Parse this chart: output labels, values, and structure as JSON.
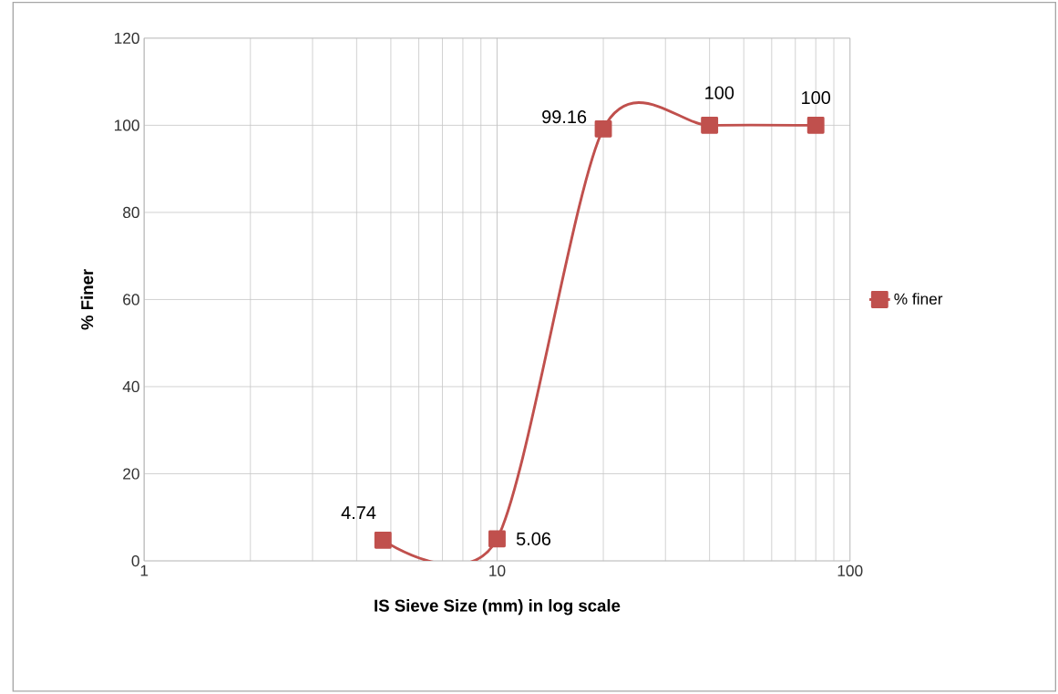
{
  "chart_data": {
    "type": "line",
    "xlabel": "IS Sieve Size (mm) in log scale",
    "ylabel": "% Finer",
    "x": [
      4.75,
      10,
      20,
      40,
      80
    ],
    "series": [
      {
        "name": "% finer",
        "color": "#c0504d",
        "values": [
          4.74,
          5.06,
          99.16,
          100,
          100
        ]
      }
    ],
    "log": "x",
    "xlim": [
      1,
      100
    ],
    "xticks": [
      1,
      10,
      100
    ],
    "ylim": [
      0,
      120
    ],
    "yticks": [
      0,
      20,
      40,
      60,
      80,
      100,
      120
    ],
    "grid": true,
    "legend": "right",
    "marker": "square",
    "line_style": "solid",
    "data_labels": true
  }
}
